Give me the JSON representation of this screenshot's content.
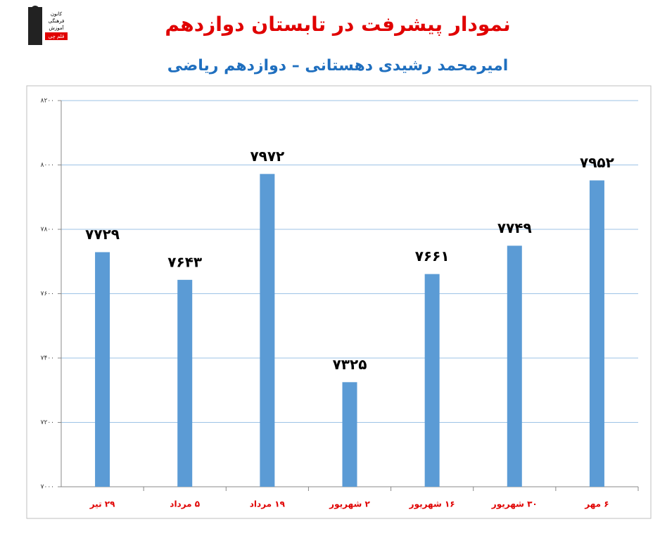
{
  "logo": {
    "lines": [
      "کانون",
      "فرهنگی",
      "آموزش",
      "قلم چی"
    ]
  },
  "chart_data": {
    "type": "bar",
    "title": "نمودار پیشرفت در تابستان دوازدهم",
    "subtitle": "امیرمحمد رشیدی دهستانی – دوازدهم ریاضی",
    "categories": [
      "۲۹ تیر",
      "۵ مرداد",
      "۱۹ مرداد",
      "۲ شهریور",
      "۱۶ شهریور",
      "۳۰ شهریور",
      "۶ مهر"
    ],
    "values": [
      7729,
      7643,
      7972,
      7325,
      7661,
      7749,
      7952
    ],
    "value_labels": [
      "۷۷۲۹",
      "۷۶۴۳",
      "۷۹۷۲",
      "۷۳۲۵",
      "۷۶۶۱",
      "۷۷۴۹",
      "۷۹۵۲"
    ],
    "color": "#5b9bd5",
    "ylim": [
      7000,
      8200
    ],
    "yticks": [
      {
        "value": 7000,
        "label": "۷۰۰۰"
      },
      {
        "value": 7200,
        "label": "۷۲۰۰"
      },
      {
        "value": 7400,
        "label": "۷۴۰۰"
      },
      {
        "value": 7600,
        "label": "۷۶۰۰"
      },
      {
        "value": 7800,
        "label": "۷۸۰۰"
      },
      {
        "value": 8000,
        "label": "۸۰۰۰"
      },
      {
        "value": 8200,
        "label": "۸۲۰۰"
      }
    ],
    "grid": true
  }
}
